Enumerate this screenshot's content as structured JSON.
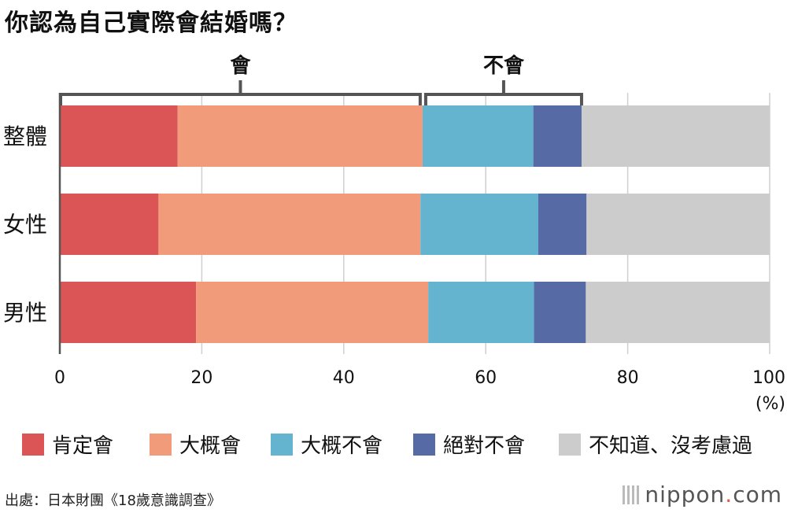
{
  "title": "你認為自己實際會結婚嗎？",
  "source": "出處：日本財團《18歲意識調查》",
  "brand": {
    "name": "nippon",
    "dot": ".",
    "tld": "com"
  },
  "brackets": [
    {
      "label": "會",
      "from": 0,
      "to": 51.1
    },
    {
      "label": "不會",
      "from": 51.1,
      "to": 73.5
    }
  ],
  "chart_data": {
    "type": "bar",
    "orientation": "horizontal",
    "stacked": true,
    "categories": [
      "整體",
      "女性",
      "男性"
    ],
    "series": [
      {
        "name": "肯定會",
        "color": "#db5556",
        "values": [
          16.6,
          13.9,
          19.2
        ]
      },
      {
        "name": "大概會",
        "color": "#f29b7b",
        "values": [
          34.5,
          36.9,
          32.7
        ]
      },
      {
        "name": "大概不會",
        "color": "#65b4cf",
        "values": [
          15.6,
          16.6,
          14.9
        ]
      },
      {
        "name": "絕對不會",
        "color": "#566aa6",
        "values": [
          6.8,
          6.8,
          7.3
        ]
      },
      {
        "name": "不知道、沒考慮過",
        "color": "#cccccc",
        "values": [
          26.5,
          25.8,
          25.9
        ]
      }
    ],
    "xlim": [
      0,
      100
    ],
    "xticks": [
      0,
      20,
      40,
      60,
      80,
      100
    ],
    "xunit": "(%)",
    "grid": true,
    "legend": "bottom"
  }
}
